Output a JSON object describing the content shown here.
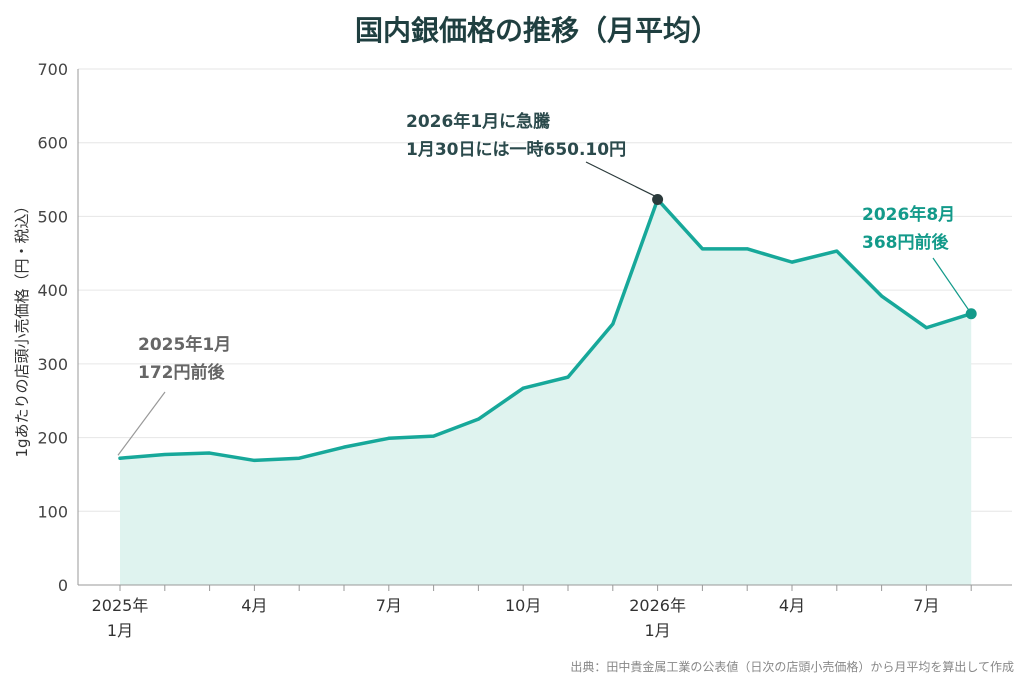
{
  "colors": {
    "line": "#17a89a",
    "area": "#dff3ef",
    "grid": "#e6e6e6",
    "axis": "#999999",
    "peak_marker": "#2b3a3b",
    "latest_marker": "#139a8a",
    "title": "#1f3f40"
  },
  "chart_data": {
    "type": "area",
    "title": "国内銀価格の推移（月平均）",
    "ylabel": "1gあたりの店頭小売価格（円・税込）",
    "xlabel": "",
    "ylim": [
      0,
      700
    ],
    "yticks": [
      0,
      100,
      200,
      300,
      400,
      500,
      600,
      700
    ],
    "grid": true,
    "legend": "none",
    "x": [
      "2025-01",
      "2025-02",
      "2025-03",
      "2025-04",
      "2025-05",
      "2025-06",
      "2025-07",
      "2025-08",
      "2025-09",
      "2025-10",
      "2025-11",
      "2025-12",
      "2026-01",
      "2026-02",
      "2026-03",
      "2026-04",
      "2026-05",
      "2026-06",
      "2026-07",
      "2026-08"
    ],
    "values": [
      172,
      177,
      179,
      169,
      172,
      187,
      199,
      202,
      225,
      267,
      282,
      354,
      523,
      456,
      456,
      438,
      453,
      392,
      349,
      368
    ],
    "xtick_labels": [
      {
        "index": 0,
        "lines": [
          "2025年",
          "1月"
        ]
      },
      {
        "index": 3,
        "lines": [
          "4月"
        ]
      },
      {
        "index": 6,
        "lines": [
          "7月"
        ]
      },
      {
        "index": 9,
        "lines": [
          "10月"
        ]
      },
      {
        "index": 12,
        "lines": [
          "2026年",
          "1月"
        ]
      },
      {
        "index": 15,
        "lines": [
          "4月"
        ]
      },
      {
        "index": 18,
        "lines": [
          "7月"
        ]
      }
    ],
    "annotations": [
      {
        "index": 0,
        "style": "gray",
        "marker": false,
        "lines": [
          "2025年1月",
          "172円前後"
        ]
      },
      {
        "index": 12,
        "style": "dark",
        "marker": true,
        "lines": [
          "2026年1月に急騰",
          "1月30日には一時650.10円"
        ]
      },
      {
        "index": 19,
        "style": "teal",
        "marker": true,
        "lines": [
          "2026年8月",
          "368円前後"
        ]
      }
    ],
    "source": "出典：田中貴金属工業の公表値（日次の店頭小売価格）から月平均を算出して作成"
  }
}
